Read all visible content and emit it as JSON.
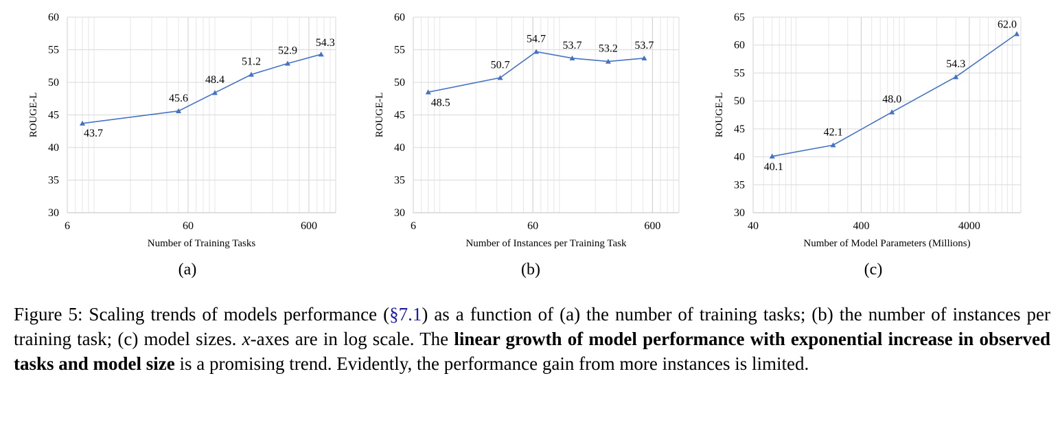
{
  "chart_data": [
    {
      "type": "line",
      "panel_label": "(a)",
      "xlabel": "Number of Training Tasks",
      "ylabel": "ROUGE-L",
      "xscale": "log",
      "xlim": [
        6,
        1000
      ],
      "ylim": [
        30,
        60
      ],
      "xticks": [
        6,
        60,
        600
      ],
      "yticks": [
        30,
        35,
        40,
        45,
        50,
        55,
        60
      ],
      "grid": true,
      "marker": "triangle",
      "color": "#4472C4",
      "x": [
        8,
        50,
        100,
        200,
        400,
        757
      ],
      "y": [
        43.7,
        45.6,
        48.4,
        51.2,
        52.9,
        54.3
      ],
      "data_labels": [
        "43.7",
        "45.6",
        "48.4",
        "51.2",
        "52.9",
        "54.3"
      ]
    },
    {
      "type": "line",
      "panel_label": "(b)",
      "xlabel": "Number of Instances per Training Task",
      "ylabel": "ROUGE-L",
      "xscale": "log",
      "xlim": [
        6,
        1000
      ],
      "ylim": [
        30,
        60
      ],
      "xticks": [
        6,
        60,
        600
      ],
      "yticks": [
        30,
        35,
        40,
        45,
        50,
        55,
        60
      ],
      "grid": true,
      "marker": "triangle",
      "color": "#4472C4",
      "x": [
        8,
        32,
        64,
        128,
        256,
        512
      ],
      "y": [
        48.5,
        50.7,
        54.7,
        53.7,
        53.2,
        53.7
      ],
      "data_labels": [
        "48.5",
        "50.7",
        "54.7",
        "53.7",
        "53.2",
        "53.7"
      ]
    },
    {
      "type": "line",
      "panel_label": "(c)",
      "xlabel": "Number of Model Parameters (Millions)",
      "ylabel": "ROUGE-L",
      "xscale": "log",
      "xlim": [
        40,
        12000
      ],
      "ylim": [
        30,
        65
      ],
      "xticks": [
        40,
        400,
        4000
      ],
      "yticks": [
        30,
        35,
        40,
        45,
        50,
        55,
        60,
        65
      ],
      "grid": true,
      "marker": "triangle",
      "color": "#4472C4",
      "x": [
        60,
        220,
        770,
        3000,
        11000
      ],
      "y": [
        40.1,
        42.1,
        48.0,
        54.3,
        62.0
      ],
      "data_labels": [
        "40.1",
        "42.1",
        "48.0",
        "54.3",
        "62.0"
      ]
    }
  ],
  "caption": {
    "seg1": "Figure 5: Scaling trends of models performance (",
    "ref": "§7.1",
    "seg2": ") as a function of (a) the number of training tasks; (b) the number of instances per training task; (c) model sizes. ",
    "var": "x",
    "seg3": "-axes are in log scale. The ",
    "bold": "linear growth of model performance with exponential increase in observed tasks and model size",
    "seg4": " is a promising trend. Evidently, the performance gain from more instances is limited."
  }
}
